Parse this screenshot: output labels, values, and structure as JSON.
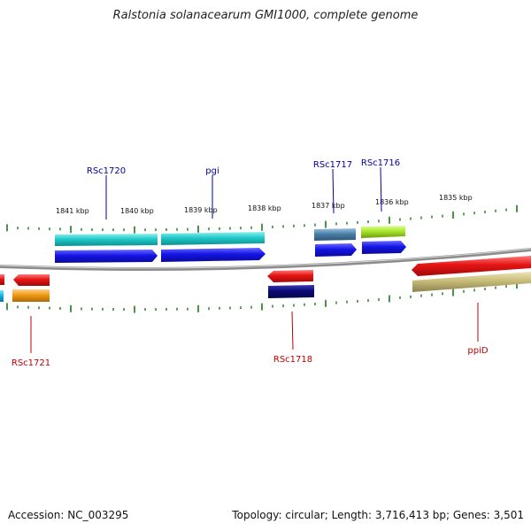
{
  "title": "Ralstonia solanacearum GMI1000, complete genome",
  "footer": {
    "accession": "Accession: NC_003295",
    "info": "Topology: circular; Length: 3,716,413 bp; Genes: 3,501"
  },
  "scale_labels": [
    "1841 kbp",
    "1840 kbp",
    "1839 kbp",
    "1838 kbp",
    "1837 kbp",
    "1836 kbp",
    "1835 kbp"
  ],
  "gene_labels": {
    "RSc1720": "RSc1720",
    "pgi": "pgi",
    "RSc1717": "RSc1717",
    "RSc1716": "RSc1716",
    "RSc1721": "RSc1721",
    "RSc1718": "RSc1718",
    "ppiD": "ppiD"
  },
  "colors": {
    "forward_label": "#0000a0",
    "reverse_label": "#c00000",
    "tick": "#1a7a1a",
    "backbone": "#8c8c8c",
    "cyan": "#20c8c8",
    "blue": "#1414e6",
    "red": "#e61414",
    "navy": "#0a0a78",
    "steelblue": "#4a7fa8",
    "yellowgreen": "#a8e628",
    "orange": "#f09a14",
    "khaki": "#c8bc78",
    "skyblue": "#14b4e6"
  }
}
